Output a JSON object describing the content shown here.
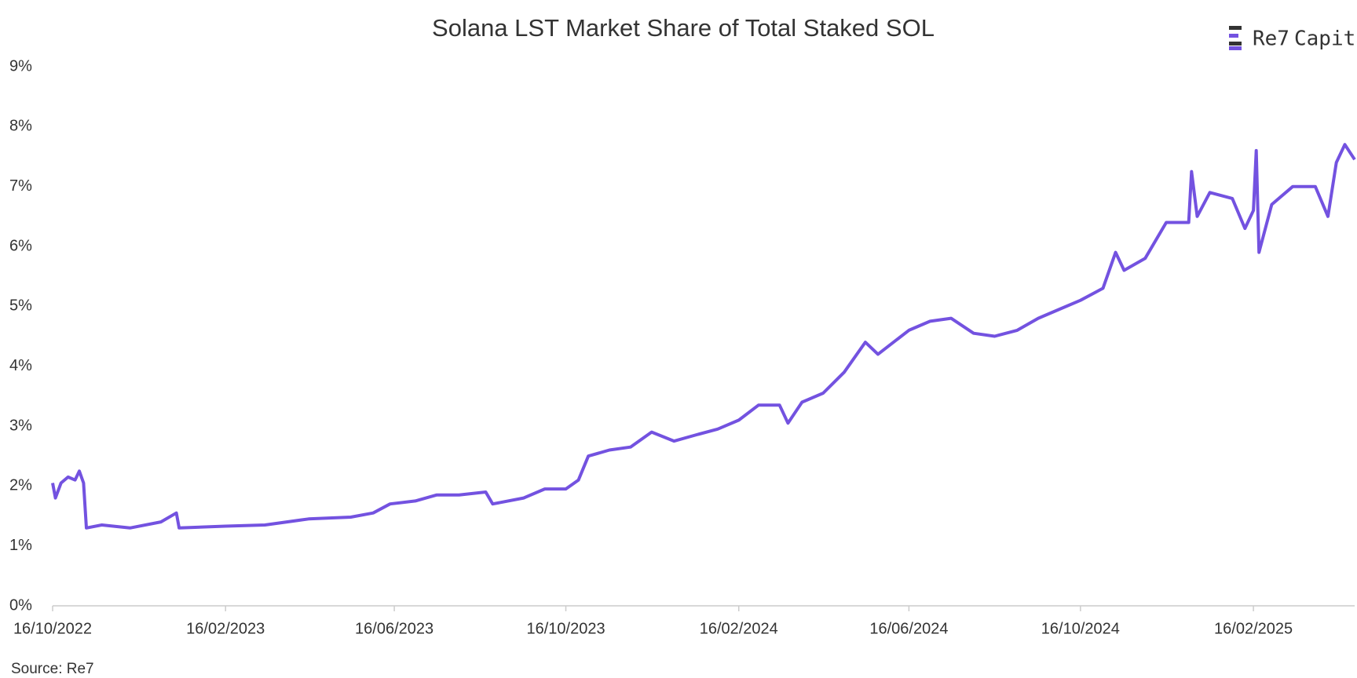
{
  "chart_data": {
    "type": "line",
    "title": "Solana LST Market Share of Total Staked SOL",
    "source": "Source: Re7",
    "logo": {
      "name": "Re7",
      "suffix": "Capital"
    },
    "grid": false,
    "xlim": [
      "16/10/2022",
      "29/04/2025"
    ],
    "xticks": [
      "16/10/2022",
      "16/02/2023",
      "16/06/2023",
      "16/10/2023",
      "16/02/2024",
      "16/06/2024",
      "16/10/2024",
      "16/02/2025"
    ],
    "ylim": [
      0,
      9
    ],
    "yticks": [
      {
        "value": 0,
        "label": "0%"
      },
      {
        "value": 1,
        "label": "1%"
      },
      {
        "value": 2,
        "label": "2%"
      },
      {
        "value": 3,
        "label": "3%"
      },
      {
        "value": 4,
        "label": "4%"
      },
      {
        "value": 5,
        "label": "5%"
      },
      {
        "value": 6,
        "label": "6%"
      },
      {
        "value": 7,
        "label": "7%"
      },
      {
        "value": 8,
        "label": "8%"
      },
      {
        "value": 9,
        "label": "9%"
      }
    ],
    "color": "#7352e0",
    "x": [
      "16/10/2022",
      "18/10/2022",
      "22/10/2022",
      "27/10/2022",
      "01/11/2022",
      "04/11/2022",
      "07/11/2022",
      "09/11/2022",
      "20/11/2022",
      "10/12/2022",
      "01/01/2023",
      "12/01/2023",
      "14/01/2023",
      "16/02/2023",
      "16/03/2023",
      "16/04/2023",
      "16/05/2023",
      "01/06/2023",
      "13/06/2023",
      "01/07/2023",
      "16/07/2023",
      "01/08/2023",
      "20/08/2023",
      "25/08/2023",
      "16/09/2023",
      "01/10/2023",
      "16/10/2023",
      "25/10/2023",
      "01/11/2023",
      "16/11/2023",
      "01/12/2023",
      "16/12/2023",
      "01/01/2024",
      "16/01/2024",
      "01/02/2024",
      "16/02/2024",
      "01/03/2024",
      "16/03/2024",
      "22/03/2024",
      "01/04/2024",
      "16/04/2024",
      "01/05/2024",
      "16/05/2024",
      "25/05/2024",
      "16/06/2024",
      "01/07/2024",
      "16/07/2024",
      "01/08/2024",
      "16/08/2024",
      "01/09/2024",
      "16/09/2024",
      "01/10/2024",
      "16/10/2024",
      "01/11/2024",
      "10/11/2024",
      "16/11/2024",
      "01/12/2024",
      "16/12/2024",
      "01/01/2025",
      "03/01/2025",
      "07/01/2025",
      "16/01/2025",
      "01/02/2025",
      "10/02/2025",
      "16/02/2025",
      "18/02/2025",
      "20/02/2025",
      "01/03/2025",
      "16/03/2025",
      "01/04/2025",
      "10/04/2025",
      "16/04/2025",
      "22/04/2025",
      "29/04/2025"
    ],
    "values": [
      2.05,
      1.8,
      2.05,
      2.15,
      2.1,
      2.25,
      2.05,
      1.3,
      1.35,
      1.3,
      1.4,
      1.55,
      1.3,
      1.33,
      1.35,
      1.45,
      1.48,
      1.55,
      1.7,
      1.75,
      1.85,
      1.85,
      1.9,
      1.7,
      1.8,
      1.95,
      1.95,
      2.1,
      2.5,
      2.6,
      2.65,
      2.9,
      2.75,
      2.85,
      2.95,
      3.1,
      3.35,
      3.35,
      3.05,
      3.4,
      3.55,
      3.9,
      4.4,
      4.2,
      4.6,
      4.75,
      4.8,
      4.55,
      4.5,
      4.6,
      4.8,
      4.95,
      5.1,
      5.3,
      5.9,
      5.6,
      5.8,
      6.4,
      6.4,
      7.25,
      6.5,
      6.9,
      6.8,
      6.3,
      6.6,
      7.6,
      5.9,
      6.7,
      7.0,
      7.0,
      6.5,
      7.4,
      7.7,
      7.45
    ]
  }
}
